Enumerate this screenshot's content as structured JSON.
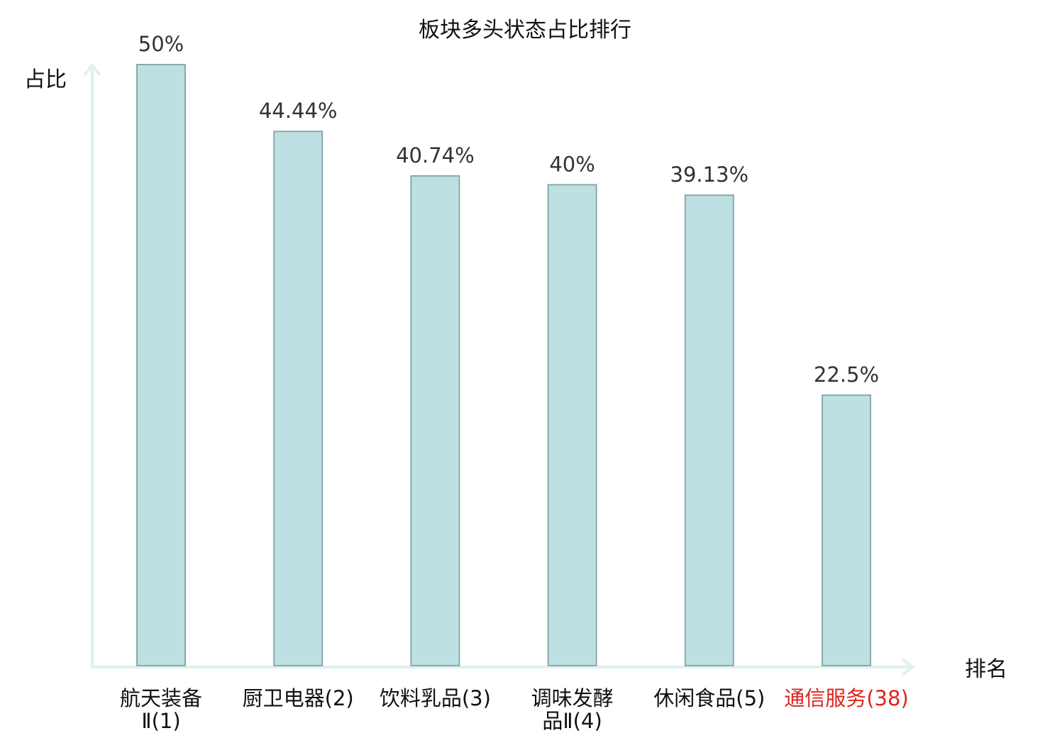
{
  "chart_data": {
    "type": "bar",
    "title": "板块多头状态占比排行",
    "ylabel": "占比",
    "xlabel": "排名",
    "ylim": [
      0,
      50
    ],
    "grid": false,
    "categories": [
      {
        "name": "航天装备",
        "rank": "Ⅱ(1)",
        "lines": [
          "航天装备",
          "Ⅱ(1)"
        ],
        "highlight": false
      },
      {
        "name": "厨卫电器",
        "rank": "(2)",
        "lines": [
          "厨卫电器(2)"
        ],
        "highlight": false
      },
      {
        "name": "饮料乳品",
        "rank": "(3)",
        "lines": [
          "饮料乳品(3)"
        ],
        "highlight": false
      },
      {
        "name": "调味发酵",
        "rank": "品Ⅱ(4)",
        "lines": [
          "调味发酵",
          "品Ⅱ(4)"
        ],
        "highlight": false
      },
      {
        "name": "休闲食品",
        "rank": "(5)",
        "lines": [
          "休闲食品(5)"
        ],
        "highlight": false
      },
      {
        "name": "通信服务",
        "rank": "(38)",
        "lines": [
          "通信服务(38)"
        ],
        "highlight": true
      }
    ],
    "values": [
      50,
      44.44,
      40.74,
      40,
      39.13,
      22.5
    ],
    "value_labels": [
      "50%",
      "44.44%",
      "40.74%",
      "40%",
      "39.13%",
      "22.5%"
    ]
  },
  "colors": {
    "bar_fill": "#bde0e3",
    "bar_stroke": "#8aa9ac",
    "axis": "#dff1ee",
    "highlight_text": "#e0221e",
    "normal_text": "#111111"
  }
}
